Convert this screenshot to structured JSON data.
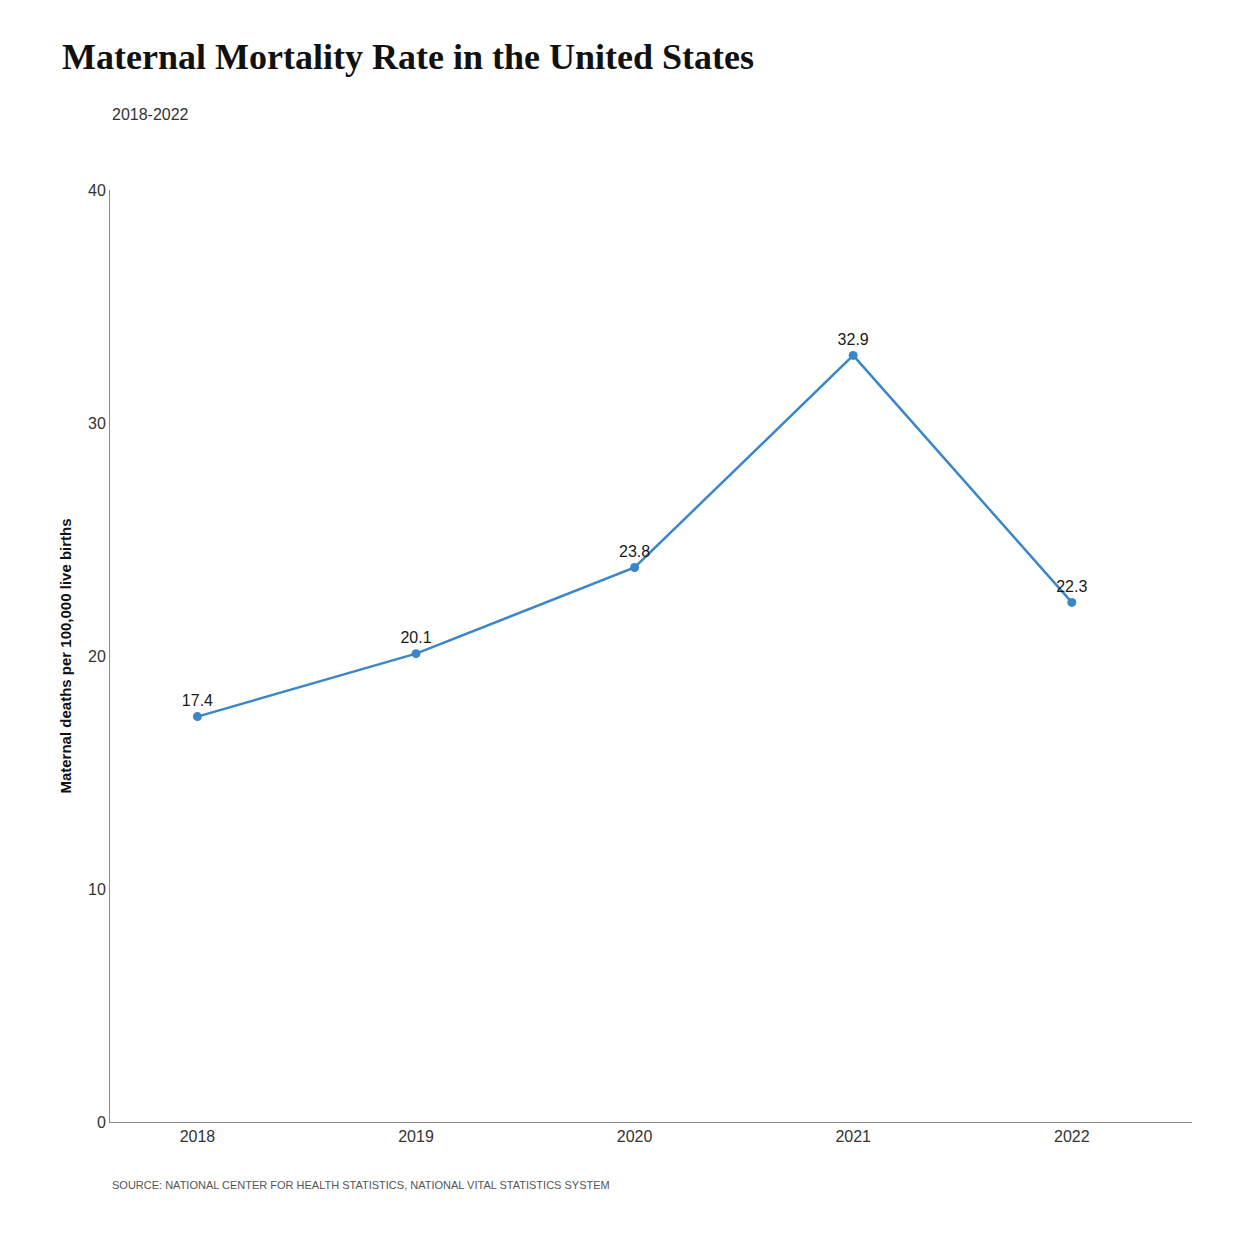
{
  "chart_data": {
    "type": "line",
    "title": "Maternal Mortality Rate in the United States",
    "subtitle": "2018-2022",
    "ylabel": "Maternal deaths per 100,000 live births",
    "x": [
      2018,
      2019,
      2020,
      2021,
      2022
    ],
    "values": [
      17.4,
      20.1,
      23.8,
      32.9,
      22.3
    ],
    "color": "#3a86c8",
    "xlim": [
      2017.6,
      2022.55
    ],
    "xticks": [
      2018,
      2019,
      2020,
      2021,
      2022
    ],
    "ylim": [
      0,
      40
    ],
    "yticks": [
      0,
      10,
      20,
      30,
      40
    ],
    "grid": false,
    "data_labels": true,
    "marker": "circle",
    "annotations": [
      "SOURCE: NATIONAL CENTER FOR HEALTH STATISTICS, NATIONAL VITAL STATISTICS SYSTEM"
    ]
  }
}
